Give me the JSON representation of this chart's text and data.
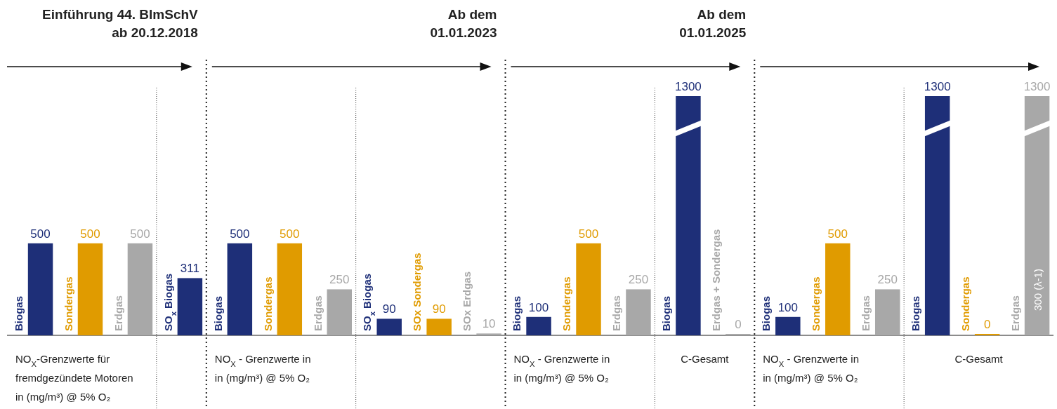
{
  "chart_data": {
    "type": "bar",
    "categories": [
      "Biogas",
      "Sondergas",
      "Erdgas",
      "SO$_{x}$ Biogas",
      "Biogas",
      "Sondergas",
      "Erdgas",
      "SO$_{x}$ Biogas",
      "SOx Sondergas",
      "SOx Erdgas",
      "Biogas",
      "Sondergas",
      "Erdgas",
      "Biogas",
      "Erdgas + Sondergas",
      "Biogas",
      "Sondergas",
      "Erdgas",
      "Biogas",
      "Sondergas",
      "Erdgas"
    ],
    "values": [
      500,
      500,
      500,
      311,
      500,
      500,
      250,
      90,
      90,
      10,
      100,
      500,
      250,
      1300,
      0,
      100,
      500,
      250,
      1300,
      0,
      1300
    ],
    "colors": [
      "#1e2f78",
      "#e09b00",
      "#a8a8a8",
      "#1e2f78",
      "#1e2f78",
      "#e09b00",
      "#a8a8a8",
      "#1e2f78",
      "#e09b00",
      "#a8a8a8",
      "#1e2f78",
      "#e09b00",
      "#a8a8a8",
      "#1e2f78",
      "#a8a8a8",
      "#1e2f78",
      "#e09b00",
      "#a8a8a8",
      "#1e2f78",
      "#e09b00",
      "#a8a8a8"
    ],
    "data_labels": true,
    "annotations": [
      "Einführung 44. BlmSchV\nab 20.12.2018",
      "Ab dem\n01.01.2023",
      "Ab dem\n01.01.2025",
      "NO$_{X}$-Grenzwerte für\nfremdgezündete Motoren\nin (mg/m³) @ 5% O₂",
      "NO$_{X}$ - Grenzwerte in\nin (mg/m³) @ 5% O₂",
      "NO$_{X}$ - Grenzwerte in\nin (mg/m³) @ 5% O₂",
      "C-Gesamt",
      "NO$_{X}$ - Grenzwerte in\nin (mg/m³) @ 5% O₂",
      "C-Gesamt",
      "300 (λ-1)"
    ]
  }
}
